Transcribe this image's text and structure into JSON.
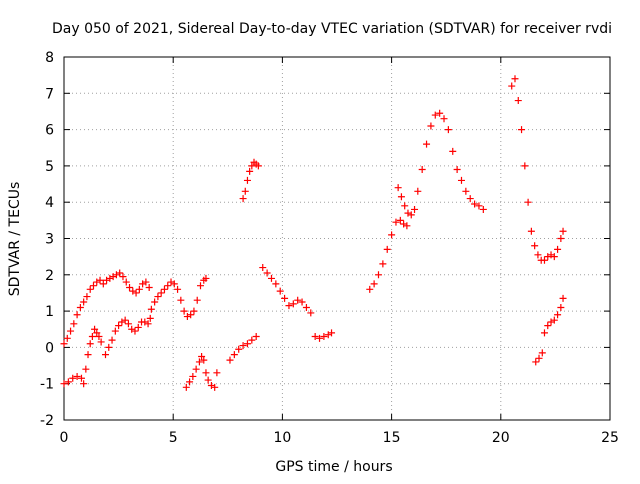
{
  "chart_data": {
    "type": "scatter",
    "title": "Day 050 of 2021, Sidereal Day-to-day VTEC variation (SDTVAR) for receiver rvdi",
    "xlabel": "GPS time / hours",
    "ylabel": "SDTVAR / TECUs",
    "xlim": [
      0,
      25
    ],
    "ylim": [
      -2,
      8
    ],
    "xticks": [
      "0",
      "5",
      "10",
      "15",
      "20",
      "25"
    ],
    "yticks": [
      "-2",
      "-1",
      "0",
      "1",
      "2",
      "3",
      "4",
      "5",
      "6",
      "7",
      "8"
    ],
    "grid": true,
    "marker": "plus",
    "color": "#ff0000",
    "series": [
      {
        "points": [
          [
            0.0,
            0.1
          ],
          [
            0.15,
            0.25
          ],
          [
            0.3,
            0.45
          ],
          [
            0.45,
            0.65
          ],
          [
            0.6,
            0.9
          ],
          [
            0.75,
            1.1
          ],
          [
            0.9,
            1.25
          ],
          [
            1.05,
            1.4
          ],
          [
            1.2,
            1.6
          ],
          [
            1.35,
            1.7
          ],
          [
            1.5,
            1.8
          ],
          [
            1.65,
            1.85
          ],
          [
            1.8,
            1.75
          ],
          [
            1.95,
            1.85
          ],
          [
            2.1,
            1.9
          ],
          [
            2.25,
            1.95
          ],
          [
            2.4,
            2.0
          ],
          [
            2.55,
            2.05
          ],
          [
            2.7,
            1.95
          ],
          [
            2.85,
            1.8
          ],
          [
            3.0,
            1.65
          ],
          [
            3.15,
            1.55
          ],
          [
            3.3,
            1.5
          ],
          [
            3.45,
            1.6
          ],
          [
            3.6,
            1.75
          ],
          [
            3.75,
            1.8
          ],
          [
            3.9,
            1.65
          ],
          [
            4.0,
            1.05
          ],
          [
            4.15,
            1.25
          ],
          [
            4.3,
            1.4
          ],
          [
            4.45,
            1.5
          ],
          [
            4.6,
            1.6
          ],
          [
            4.75,
            1.7
          ],
          [
            4.9,
            1.8
          ],
          [
            5.05,
            1.75
          ],
          [
            5.2,
            1.6
          ],
          [
            5.35,
            1.3
          ],
          [
            5.5,
            1.0
          ],
          [
            5.65,
            0.85
          ],
          [
            5.8,
            0.9
          ],
          [
            5.95,
            1.0
          ],
          [
            6.1,
            1.3
          ],
          [
            6.25,
            1.7
          ],
          [
            6.4,
            1.85
          ],
          [
            6.5,
            1.9
          ],
          [
            8.2,
            4.1
          ],
          [
            8.3,
            4.3
          ],
          [
            8.4,
            4.6
          ],
          [
            8.5,
            4.85
          ],
          [
            8.6,
            5.0
          ],
          [
            8.7,
            5.1
          ],
          [
            8.8,
            5.05
          ],
          [
            8.9,
            5.0
          ],
          [
            9.1,
            2.2
          ],
          [
            9.3,
            2.05
          ],
          [
            9.5,
            1.9
          ],
          [
            9.7,
            1.75
          ],
          [
            9.9,
            1.55
          ],
          [
            10.1,
            1.35
          ],
          [
            10.3,
            1.15
          ],
          [
            10.5,
            1.2
          ],
          [
            10.7,
            1.3
          ],
          [
            10.9,
            1.25
          ],
          [
            11.1,
            1.1
          ],
          [
            11.3,
            0.95
          ],
          [
            14.0,
            1.6
          ],
          [
            14.2,
            1.75
          ],
          [
            14.4,
            2.0
          ],
          [
            14.6,
            2.3
          ],
          [
            14.8,
            2.7
          ],
          [
            15.0,
            3.1
          ],
          [
            15.2,
            3.45
          ],
          [
            15.4,
            3.5
          ],
          [
            15.55,
            3.4
          ],
          [
            15.7,
            3.35
          ],
          [
            15.3,
            4.4
          ],
          [
            15.45,
            4.15
          ],
          [
            15.6,
            3.9
          ],
          [
            15.75,
            3.7
          ],
          [
            15.9,
            3.65
          ],
          [
            16.05,
            3.8
          ],
          [
            16.2,
            4.3
          ],
          [
            16.4,
            4.9
          ],
          [
            16.6,
            5.6
          ],
          [
            16.8,
            6.1
          ],
          [
            17.0,
            6.4
          ],
          [
            17.2,
            6.45
          ],
          [
            17.4,
            6.3
          ],
          [
            17.6,
            6.0
          ],
          [
            17.8,
            5.4
          ],
          [
            18.0,
            4.9
          ],
          [
            18.2,
            4.6
          ],
          [
            18.4,
            4.3
          ],
          [
            18.6,
            4.1
          ],
          [
            18.8,
            3.95
          ],
          [
            19.0,
            3.9
          ],
          [
            19.2,
            3.8
          ],
          [
            20.5,
            7.2
          ],
          [
            20.65,
            7.4
          ],
          [
            20.8,
            6.8
          ],
          [
            20.95,
            6.0
          ],
          [
            21.1,
            5.0
          ],
          [
            21.25,
            4.0
          ],
          [
            21.4,
            3.2
          ],
          [
            21.55,
            2.8
          ],
          [
            21.7,
            2.55
          ],
          [
            21.85,
            2.4
          ],
          [
            22.0,
            2.4
          ],
          [
            22.15,
            2.5
          ],
          [
            22.3,
            2.55
          ],
          [
            22.45,
            2.5
          ],
          [
            22.6,
            2.7
          ],
          [
            22.75,
            3.0
          ],
          [
            22.85,
            3.2
          ]
        ]
      },
      {
        "points": [
          [
            0.0,
            -1.0
          ],
          [
            0.2,
            -0.95
          ],
          [
            0.4,
            -0.85
          ],
          [
            0.6,
            -0.8
          ],
          [
            0.8,
            -0.85
          ],
          [
            0.9,
            -1.0
          ],
          [
            1.0,
            -0.6
          ],
          [
            1.1,
            -0.2
          ],
          [
            1.2,
            0.1
          ],
          [
            1.3,
            0.3
          ],
          [
            1.4,
            0.5
          ],
          [
            1.5,
            0.4
          ],
          [
            1.6,
            0.3
          ],
          [
            1.7,
            0.15
          ],
          [
            1.9,
            -0.2
          ],
          [
            2.05,
            0.0
          ],
          [
            2.2,
            0.2
          ],
          [
            2.35,
            0.45
          ],
          [
            2.5,
            0.6
          ],
          [
            2.65,
            0.7
          ],
          [
            2.8,
            0.75
          ],
          [
            2.95,
            0.65
          ],
          [
            3.1,
            0.5
          ],
          [
            3.25,
            0.45
          ],
          [
            3.4,
            0.55
          ],
          [
            3.55,
            0.7
          ],
          [
            3.7,
            0.7
          ],
          [
            3.85,
            0.65
          ],
          [
            3.95,
            0.8
          ],
          [
            5.6,
            -1.1
          ],
          [
            5.75,
            -0.95
          ],
          [
            5.9,
            -0.8
          ],
          [
            6.05,
            -0.6
          ],
          [
            6.2,
            -0.4
          ],
          [
            6.3,
            -0.25
          ],
          [
            6.4,
            -0.35
          ],
          [
            6.5,
            -0.7
          ],
          [
            6.6,
            -0.9
          ],
          [
            6.75,
            -1.05
          ],
          [
            6.9,
            -1.1
          ],
          [
            7.0,
            -0.7
          ],
          [
            7.6,
            -0.35
          ],
          [
            7.8,
            -0.2
          ],
          [
            8.0,
            -0.05
          ],
          [
            8.2,
            0.05
          ],
          [
            8.4,
            0.1
          ],
          [
            8.6,
            0.2
          ],
          [
            8.8,
            0.3
          ],
          [
            11.5,
            0.3
          ],
          [
            11.7,
            0.25
          ],
          [
            11.9,
            0.3
          ],
          [
            12.1,
            0.35
          ],
          [
            12.25,
            0.4
          ],
          [
            21.6,
            -0.4
          ],
          [
            21.75,
            -0.3
          ],
          [
            21.9,
            -0.15
          ],
          [
            22.0,
            0.4
          ],
          [
            22.15,
            0.6
          ],
          [
            22.3,
            0.7
          ],
          [
            22.45,
            0.75
          ],
          [
            22.6,
            0.9
          ],
          [
            22.75,
            1.1
          ],
          [
            22.85,
            1.35
          ]
        ]
      }
    ]
  }
}
